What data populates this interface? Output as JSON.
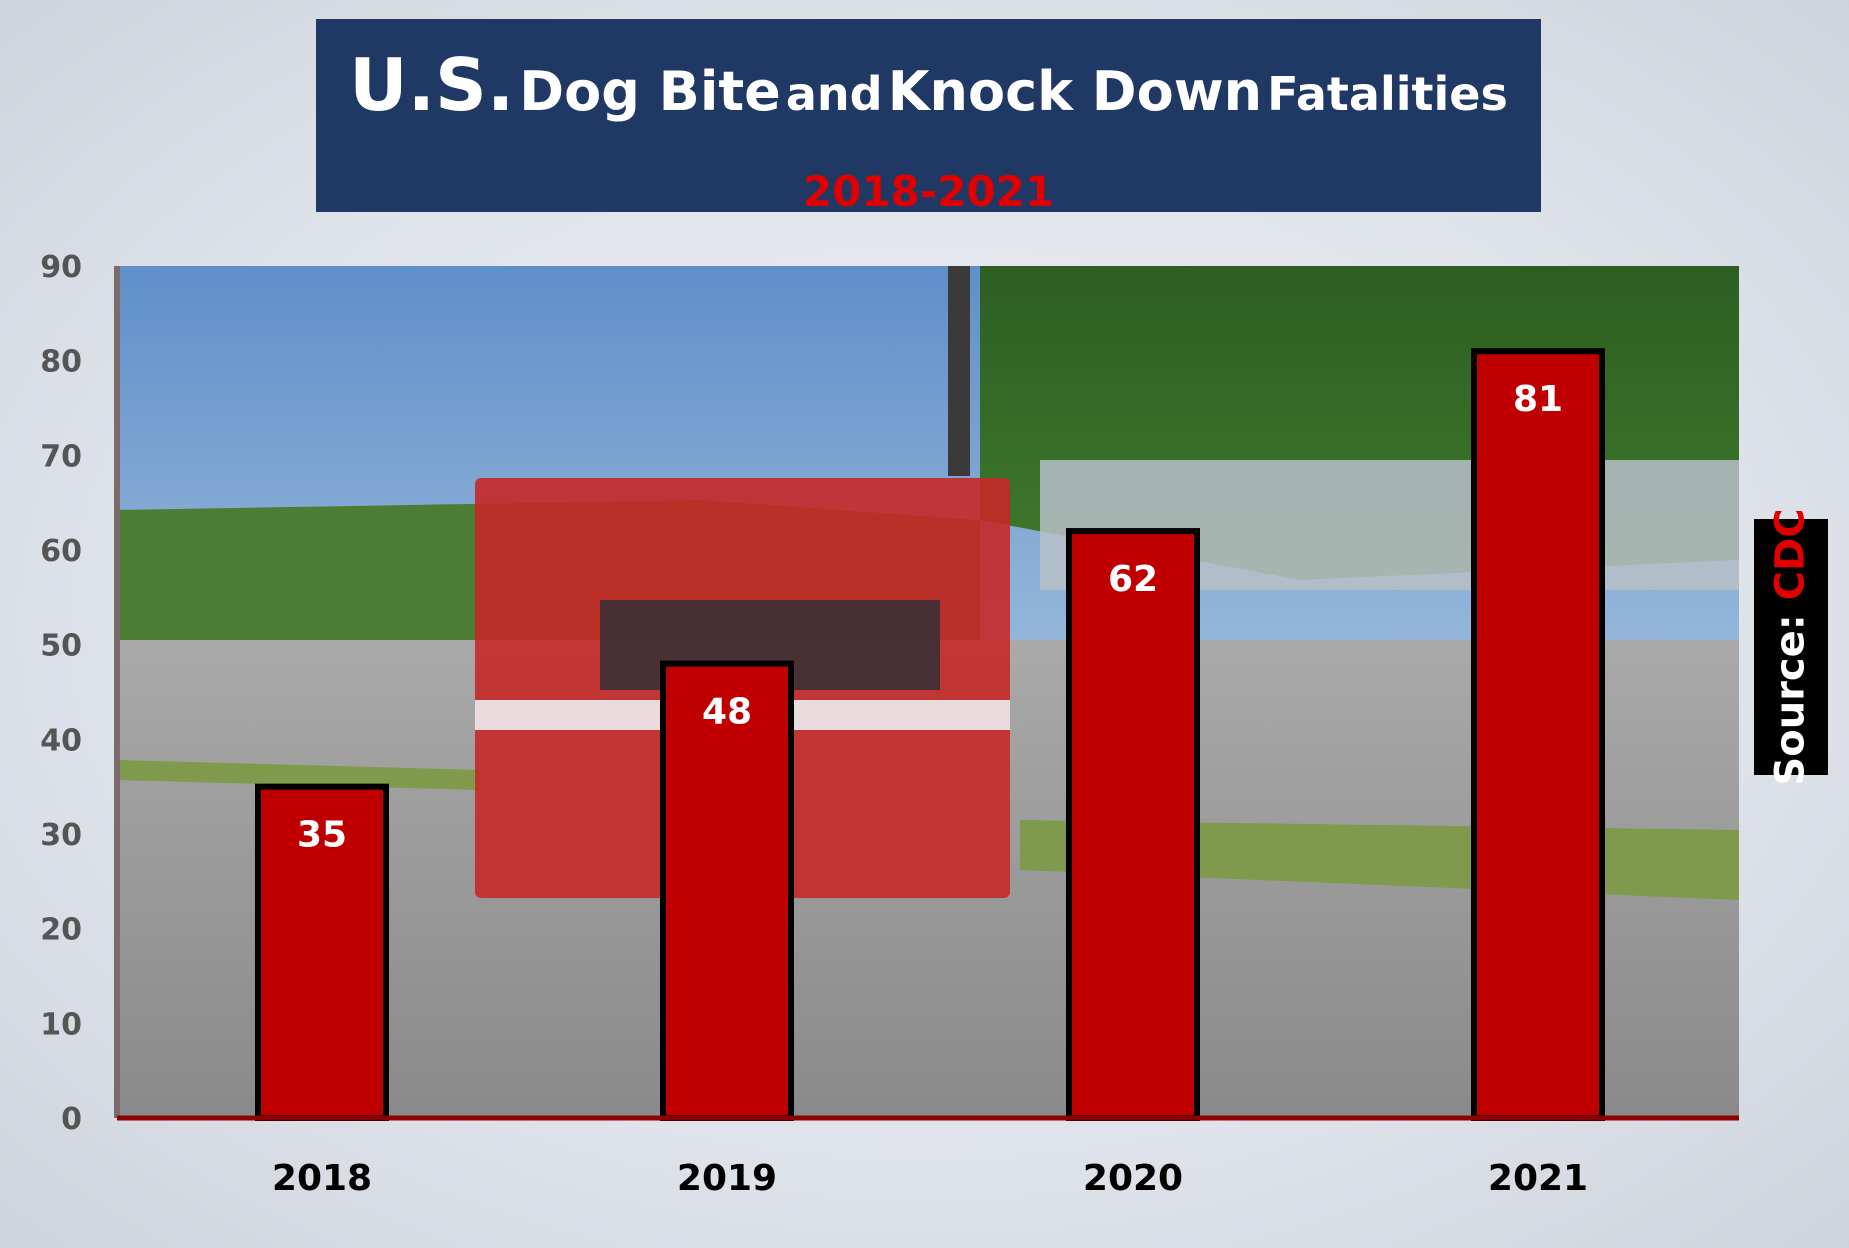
{
  "title": {
    "part1": "U.S.",
    "part2": "Dog Bite",
    "part3": "and",
    "part4": "Knock Down",
    "part5": "Fatalities",
    "subtitle": "2018-2021"
  },
  "source": {
    "label": "Source:",
    "value": "CDC"
  },
  "colors": {
    "bar": "#c00000",
    "title_bg": "#1f3864",
    "subtitle": "#e00000"
  },
  "chart_data": {
    "type": "bar",
    "title": "U.S. Dog Bite and Knock Down Fatalities 2018-2021",
    "categories": [
      "2018",
      "2019",
      "2020",
      "2021"
    ],
    "values": [
      35,
      48,
      62,
      81
    ],
    "data_labels": [
      "35",
      "48",
      "62",
      "81"
    ],
    "ylim": [
      0,
      90
    ],
    "yticks": [
      "0",
      "10",
      "20",
      "30",
      "40",
      "50",
      "60",
      "70",
      "80",
      "90"
    ],
    "xlabel": "",
    "ylabel": "",
    "grid": false,
    "legend": "none"
  }
}
